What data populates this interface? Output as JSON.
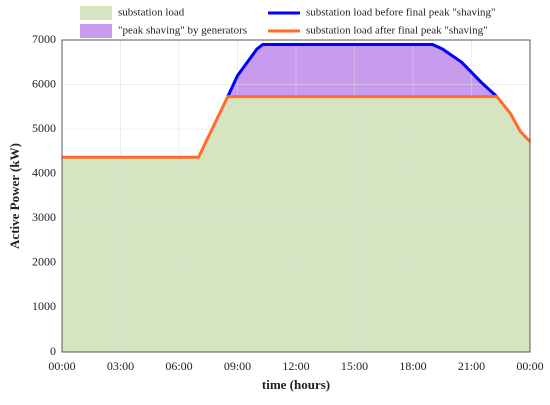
{
  "chart_data": {
    "type": "area-line",
    "xlabel": "time (hours)",
    "ylabel": "Active Power (kW)",
    "xlim": [
      0,
      24
    ],
    "ylim": [
      0,
      7000
    ],
    "xticks": [
      {
        "value": 0,
        "label": "00:00"
      },
      {
        "value": 3,
        "label": "03:00"
      },
      {
        "value": 6,
        "label": "06:00"
      },
      {
        "value": 9,
        "label": "09:00"
      },
      {
        "value": 12,
        "label": "12:00"
      },
      {
        "value": 15,
        "label": "15:00"
      },
      {
        "value": 18,
        "label": "18:00"
      },
      {
        "value": 21,
        "label": "21:00"
      },
      {
        "value": 24,
        "label": "00:00"
      }
    ],
    "yticks": [
      0,
      1000,
      2000,
      3000,
      4000,
      5000,
      6000,
      7000
    ],
    "grid": true,
    "series": [
      {
        "name": "substation load",
        "kind": "area",
        "color": "#d6e5c1",
        "x": [
          0,
          7,
          8.5,
          22.3,
          23,
          23.5,
          24
        ],
        "values": [
          4370,
          4370,
          5730,
          5730,
          5350,
          4950,
          4720
        ]
      },
      {
        "name": "\"peak shaving\" by generators",
        "kind": "area",
        "color": "#c99bee",
        "x": [
          8.5,
          9,
          10,
          10.3,
          19,
          19.5,
          20.5,
          21.5,
          22.3
        ],
        "values": [
          5730,
          6200,
          6800,
          6900,
          6900,
          6800,
          6500,
          6050,
          5730
        ]
      },
      {
        "name": "substation load before final peak \"shaving\"",
        "kind": "line",
        "color": "#0000ff",
        "x": [
          8.5,
          9,
          10,
          10.3,
          19,
          19.5,
          20.5,
          21.5,
          22.3
        ],
        "values": [
          5730,
          6200,
          6800,
          6900,
          6900,
          6800,
          6500,
          6050,
          5730
        ]
      },
      {
        "name": "substation load after final peak \"shaving\"",
        "kind": "line",
        "color": "#ff6d2e",
        "x": [
          0,
          7,
          8.5,
          22.3,
          23,
          23.5,
          24
        ],
        "values": [
          4370,
          4370,
          5730,
          5730,
          5350,
          4950,
          4720
        ]
      }
    ]
  }
}
